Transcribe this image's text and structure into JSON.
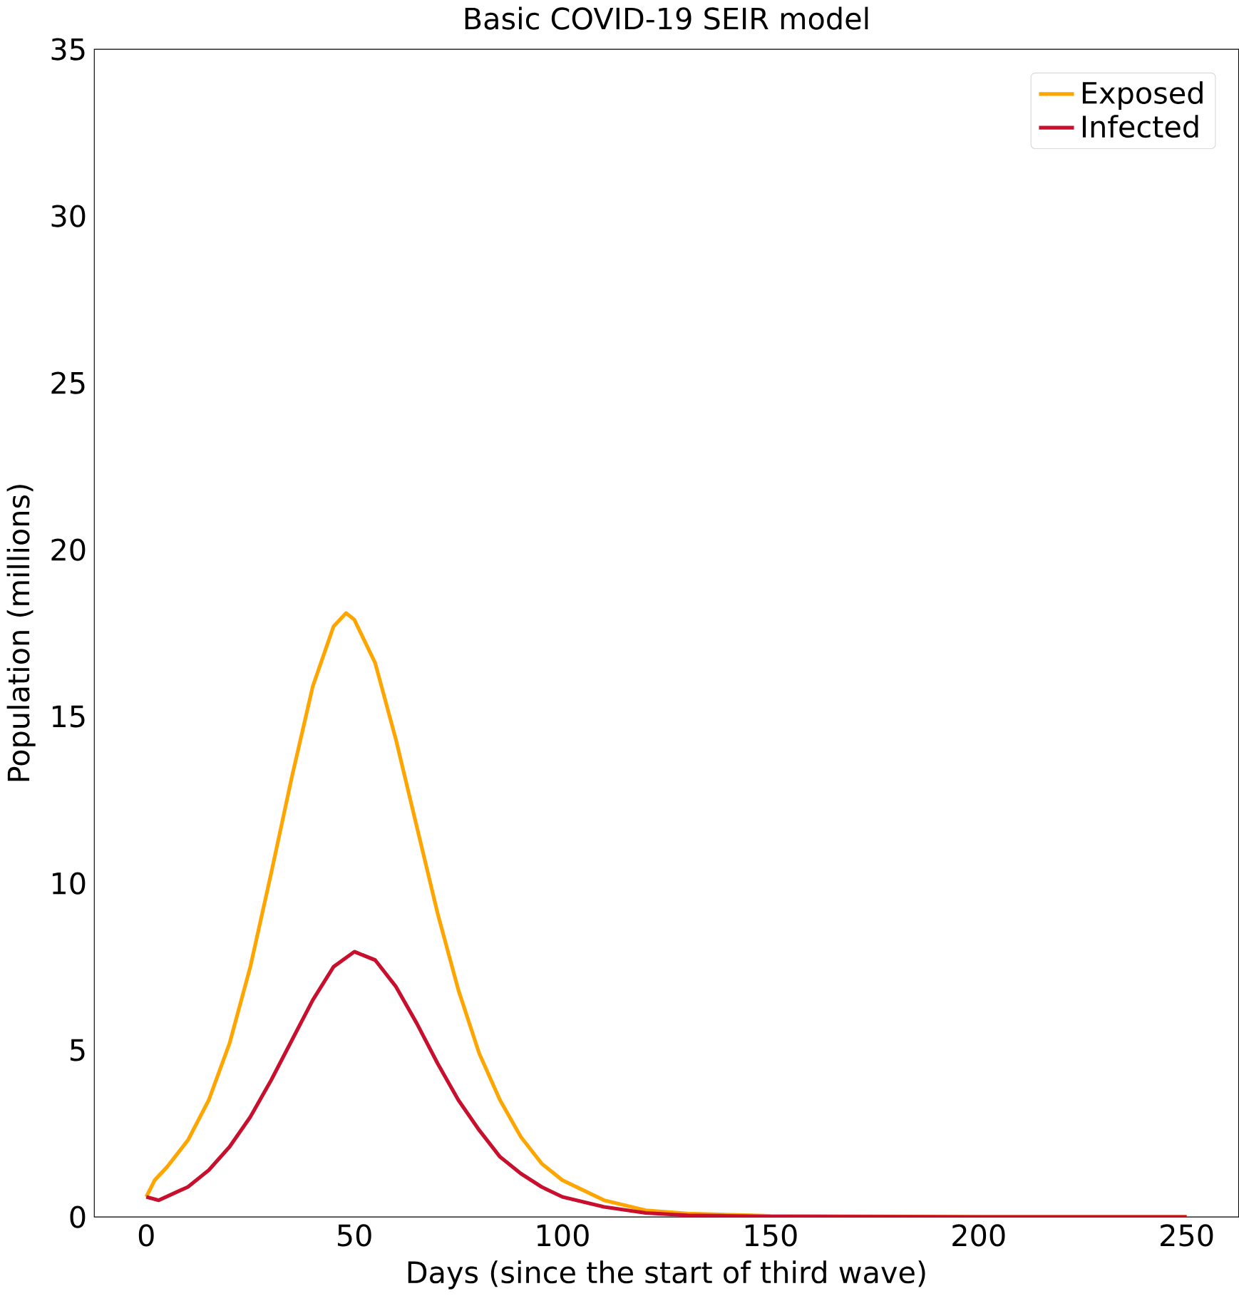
{
  "chart_data": {
    "type": "line",
    "title": "Basic COVID-19 SEIR model",
    "xlabel": "Days (since the start of third wave)",
    "ylabel": "Population (millions)",
    "xlim": [
      -12.5,
      262.5
    ],
    "ylim": [
      0,
      35
    ],
    "xticks": [
      0,
      50,
      100,
      150,
      200,
      250
    ],
    "yticks": [
      0,
      5,
      10,
      15,
      20,
      25,
      30,
      35
    ],
    "legend": "top right",
    "grid": false,
    "series": [
      {
        "name": "Exposed",
        "color": "#ffa500",
        "x": [
          0,
          2,
          5,
          10,
          15,
          20,
          25,
          30,
          35,
          40,
          45,
          48,
          50,
          55,
          60,
          65,
          70,
          75,
          80,
          85,
          90,
          95,
          100,
          110,
          120,
          130,
          150,
          200,
          250
        ],
        "values": [
          0.6,
          1.1,
          1.5,
          2.3,
          3.5,
          5.2,
          7.5,
          10.3,
          13.2,
          15.9,
          17.7,
          18.1,
          17.9,
          16.6,
          14.3,
          11.7,
          9.1,
          6.8,
          4.9,
          3.5,
          2.4,
          1.6,
          1.1,
          0.5,
          0.2,
          0.1,
          0.03,
          0,
          0
        ]
      },
      {
        "name": "Infected",
        "color": "#c8102e",
        "x": [
          0,
          3,
          10,
          15,
          20,
          25,
          30,
          35,
          40,
          45,
          50,
          55,
          60,
          65,
          70,
          75,
          80,
          85,
          90,
          95,
          100,
          110,
          120,
          130,
          150,
          200,
          250
        ],
        "values": [
          0.6,
          0.5,
          0.9,
          1.4,
          2.1,
          3.0,
          4.1,
          5.3,
          6.5,
          7.5,
          7.95,
          7.7,
          6.9,
          5.8,
          4.6,
          3.5,
          2.6,
          1.8,
          1.3,
          0.9,
          0.6,
          0.3,
          0.12,
          0.05,
          0.01,
          0,
          0
        ]
      }
    ]
  }
}
